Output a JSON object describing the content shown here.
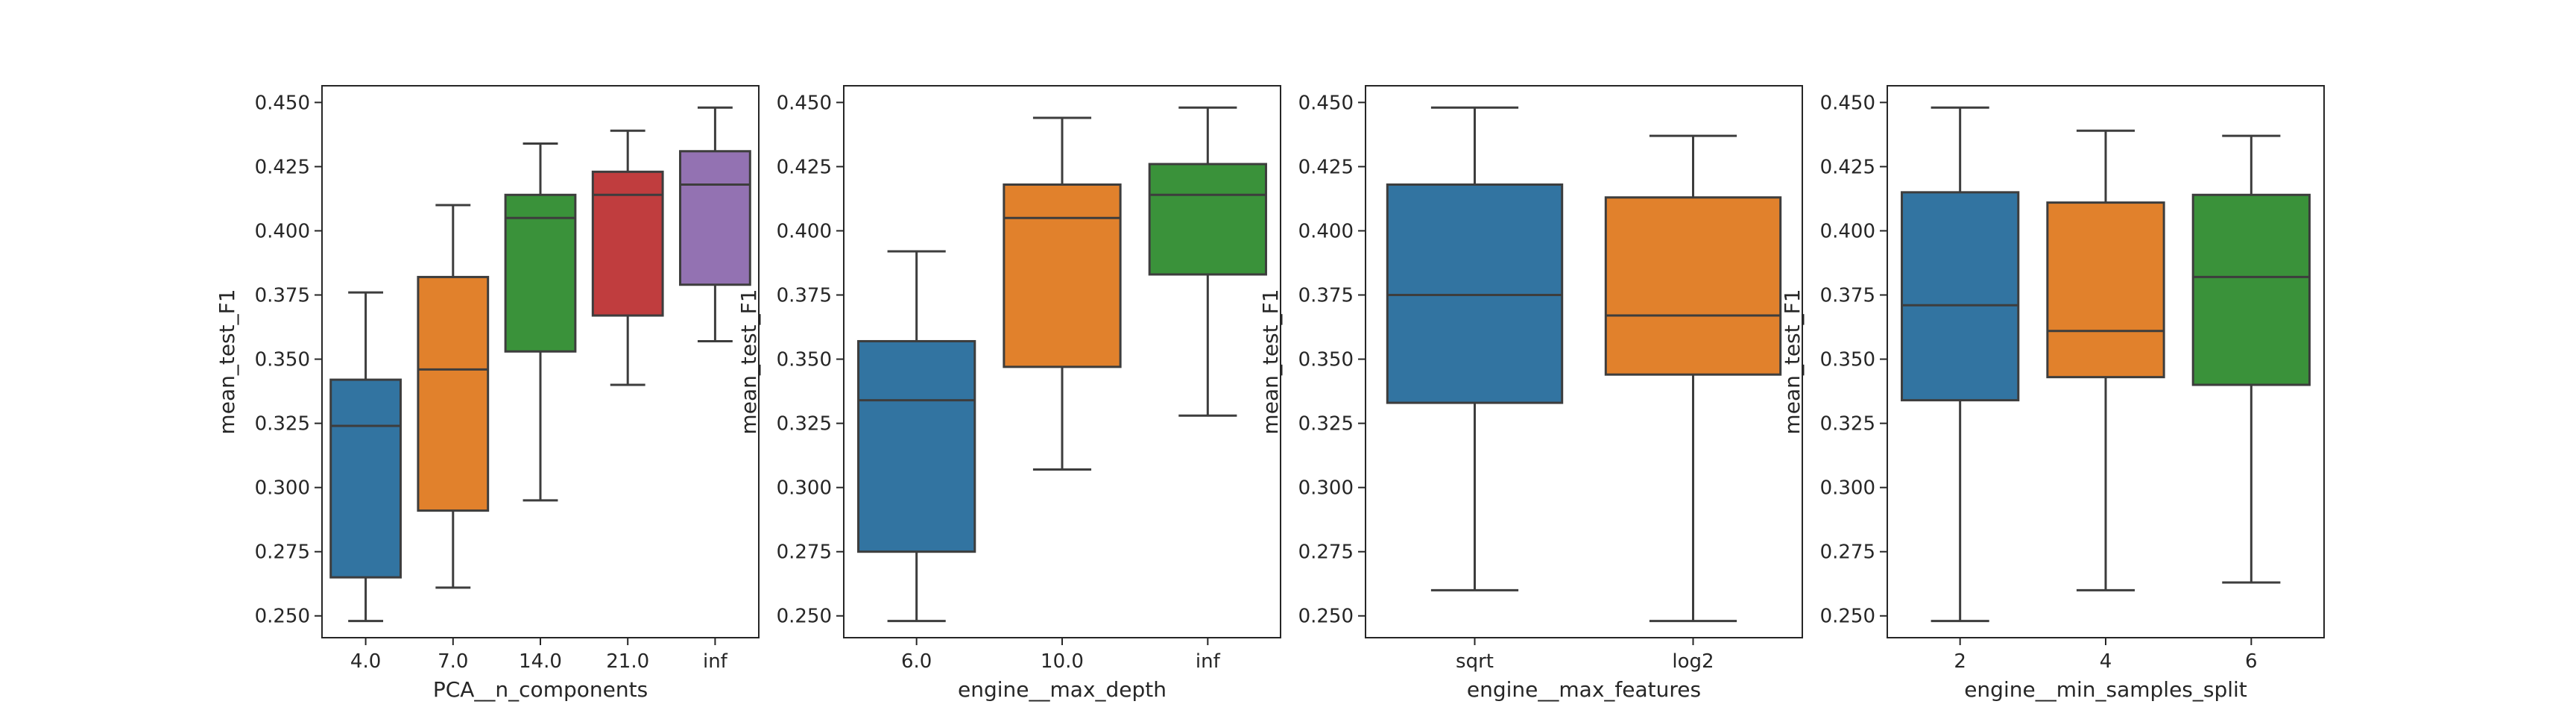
{
  "chart_data": [
    {
      "type": "boxplot",
      "xlabel": "PCA__n_components",
      "ylabel": "mean_test_F1",
      "ylim": [
        0.2415,
        0.4565
      ],
      "yticks": [
        0.25,
        0.275,
        0.3,
        0.325,
        0.35,
        0.375,
        0.4,
        0.425,
        0.45
      ],
      "ytick_labels": [
        "0.250",
        "0.275",
        "0.300",
        "0.325",
        "0.350",
        "0.375",
        "0.400",
        "0.425",
        "0.450"
      ],
      "categories": [
        "4.0",
        "7.0",
        "14.0",
        "21.0",
        "inf"
      ],
      "boxes": [
        {
          "category": "4.0",
          "whislo": 0.248,
          "q1": 0.265,
          "median": 0.324,
          "q3": 0.342,
          "whishi": 0.376,
          "color": "#3274a1"
        },
        {
          "category": "7.0",
          "whislo": 0.261,
          "q1": 0.291,
          "median": 0.346,
          "q3": 0.382,
          "whishi": 0.41,
          "color": "#e1812c"
        },
        {
          "category": "14.0",
          "whislo": 0.295,
          "q1": 0.353,
          "median": 0.405,
          "q3": 0.414,
          "whishi": 0.434,
          "color": "#3a923a"
        },
        {
          "category": "21.0",
          "whislo": 0.34,
          "q1": 0.367,
          "median": 0.414,
          "q3": 0.423,
          "whishi": 0.439,
          "color": "#c03d3e"
        },
        {
          "category": "inf",
          "whislo": 0.357,
          "q1": 0.379,
          "median": 0.418,
          "q3": 0.431,
          "whishi": 0.448,
          "color": "#9372b2"
        }
      ]
    },
    {
      "type": "boxplot",
      "xlabel": "engine__max_depth",
      "ylabel": "mean_test_F1",
      "ylim": [
        0.2415,
        0.4565
      ],
      "yticks": [
        0.25,
        0.275,
        0.3,
        0.325,
        0.35,
        0.375,
        0.4,
        0.425,
        0.45
      ],
      "ytick_labels": [
        "0.250",
        "0.275",
        "0.300",
        "0.325",
        "0.350",
        "0.375",
        "0.400",
        "0.425",
        "0.450"
      ],
      "categories": [
        "6.0",
        "10.0",
        "inf"
      ],
      "boxes": [
        {
          "category": "6.0",
          "whislo": 0.248,
          "q1": 0.275,
          "median": 0.334,
          "q3": 0.357,
          "whishi": 0.392,
          "color": "#3274a1"
        },
        {
          "category": "10.0",
          "whislo": 0.307,
          "q1": 0.347,
          "median": 0.405,
          "q3": 0.418,
          "whishi": 0.444,
          "color": "#e1812c"
        },
        {
          "category": "inf",
          "whislo": 0.328,
          "q1": 0.383,
          "median": 0.414,
          "q3": 0.426,
          "whishi": 0.448,
          "color": "#3a923a"
        }
      ]
    },
    {
      "type": "boxplot",
      "xlabel": "engine__max_features",
      "ylabel": "mean_test_F1",
      "ylim": [
        0.2415,
        0.4565
      ],
      "yticks": [
        0.25,
        0.275,
        0.3,
        0.325,
        0.35,
        0.375,
        0.4,
        0.425,
        0.45
      ],
      "ytick_labels": [
        "0.250",
        "0.275",
        "0.300",
        "0.325",
        "0.350",
        "0.375",
        "0.400",
        "0.425",
        "0.450"
      ],
      "categories": [
        "sqrt",
        "log2"
      ],
      "boxes": [
        {
          "category": "sqrt",
          "whislo": 0.26,
          "q1": 0.333,
          "median": 0.375,
          "q3": 0.418,
          "whishi": 0.448,
          "color": "#3274a1"
        },
        {
          "category": "log2",
          "whislo": 0.248,
          "q1": 0.344,
          "median": 0.367,
          "q3": 0.413,
          "whishi": 0.437,
          "color": "#e1812c"
        }
      ]
    },
    {
      "type": "boxplot",
      "xlabel": "engine__min_samples_split",
      "ylabel": "mean_test_F1",
      "ylim": [
        0.2415,
        0.4565
      ],
      "yticks": [
        0.25,
        0.275,
        0.3,
        0.325,
        0.35,
        0.375,
        0.4,
        0.425,
        0.45
      ],
      "ytick_labels": [
        "0.250",
        "0.275",
        "0.300",
        "0.325",
        "0.350",
        "0.375",
        "0.400",
        "0.425",
        "0.450"
      ],
      "categories": [
        "2",
        "4",
        "6"
      ],
      "boxes": [
        {
          "category": "2",
          "whislo": 0.248,
          "q1": 0.334,
          "median": 0.371,
          "q3": 0.415,
          "whishi": 0.448,
          "color": "#3274a1"
        },
        {
          "category": "4",
          "whislo": 0.26,
          "q1": 0.343,
          "median": 0.361,
          "q3": 0.411,
          "whishi": 0.439,
          "color": "#e1812c"
        },
        {
          "category": "6",
          "whislo": 0.263,
          "q1": 0.34,
          "median": 0.382,
          "q3": 0.414,
          "whishi": 0.437,
          "color": "#3a923a"
        }
      ]
    }
  ]
}
